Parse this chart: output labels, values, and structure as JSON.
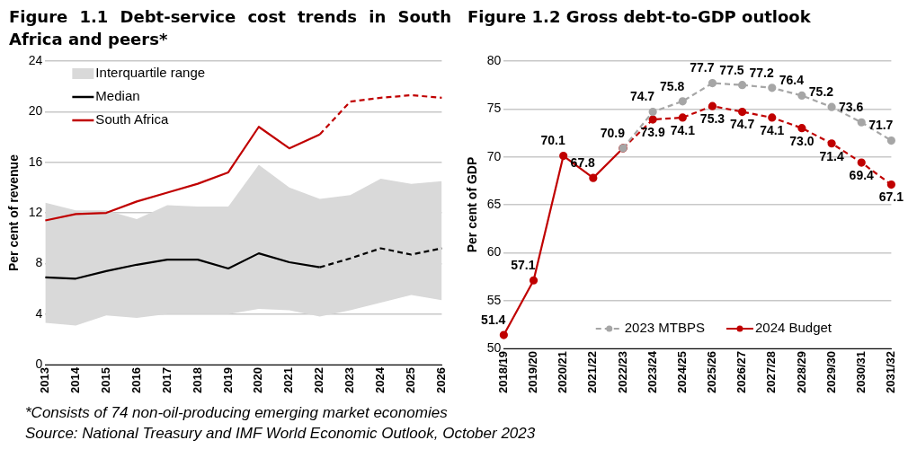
{
  "chart_data": [
    {
      "type": "line",
      "title": "Figure 1.1 Debt-service cost trends in South Africa and peers*",
      "ylabel": "Per cent of revenue",
      "categories": [
        "2013",
        "2014",
        "2015",
        "2016",
        "2017",
        "2018",
        "2019",
        "2020",
        "2021",
        "2022",
        "2023",
        "2024",
        "2025",
        "2026"
      ],
      "series": [
        {
          "name": "Interquartile range",
          "type": "area",
          "color": "#d9d9d9",
          "values": [
            null,
            null,
            null,
            null,
            null,
            null,
            null,
            null,
            null,
            null,
            null,
            null,
            null,
            null
          ],
          "upper": [
            12.8,
            12.2,
            12.2,
            11.5,
            12.6,
            12.5,
            12.5,
            15.8,
            14.0,
            13.1,
            13.4,
            14.7,
            14.3,
            14.5
          ],
          "lower": [
            3.3,
            3.1,
            3.9,
            3.7,
            4.0,
            4.0,
            4.0,
            4.4,
            4.3,
            3.8,
            4.3,
            4.9,
            5.5,
            5.1
          ]
        },
        {
          "name": "Median",
          "color": "#000000",
          "line_style": "solid",
          "values": [
            6.9,
            6.8,
            7.4,
            7.9,
            8.3,
            8.3,
            7.6,
            8.8,
            8.1,
            7.7,
            null,
            null,
            null,
            null
          ]
        },
        {
          "name": "South Africa",
          "color": "#c00000",
          "line_style": "solid",
          "values": [
            11.4,
            11.9,
            12.0,
            12.9,
            13.6,
            14.3,
            15.2,
            18.8,
            17.1,
            18.2,
            null,
            null,
            null,
            null
          ]
        },
        {
          "color": "#000000",
          "line_style": "dashed",
          "values": [
            null,
            null,
            null,
            null,
            null,
            null,
            null,
            null,
            null,
            7.7,
            8.4,
            9.2,
            8.7,
            9.2
          ]
        },
        {
          "color": "#c00000",
          "line_style": "dashed",
          "values": [
            null,
            null,
            null,
            null,
            null,
            null,
            null,
            null,
            null,
            18.2,
            20.8,
            21.1,
            21.3,
            21.1
          ]
        }
      ],
      "ylim": [
        0,
        24
      ],
      "yticks": [
        0,
        4,
        8,
        12,
        16,
        20,
        24
      ],
      "grid": "y",
      "legend": "top left",
      "marker": "none",
      "annotations": [
        "*Consists of 74 non-oil-producing emerging market economies",
        "Source: National Treasury and IMF World Economic Outlook, October 2023"
      ]
    },
    {
      "type": "line",
      "title": "Figure 1.2 Gross debt-to-GDP outlook",
      "ylabel": "Per cent of GDP",
      "categories": [
        "2018/19",
        "2019/20",
        "2020/21",
        "2021/22",
        "2022/23",
        "2023/24",
        "2024/25",
        "2025/26",
        "2026/27",
        "2027/28",
        "2028/29",
        "2029/30",
        "2030/31",
        "2031/32"
      ],
      "series": [
        {
          "name": "2023 MTBPS",
          "color": "#a6a6a6",
          "line_style": "dashed",
          "values": [
            null,
            null,
            null,
            null,
            70.9,
            74.7,
            75.8,
            77.7,
            77.5,
            77.2,
            76.4,
            75.2,
            73.6,
            71.7
          ],
          "value_labels": [
            null,
            null,
            null,
            null,
            null,
            "74.7",
            "75.8",
            "77.7",
            "77.5",
            "77.2",
            "76.4",
            "75.2",
            "73.6",
            "71.7"
          ]
        },
        {
          "name": "2024 Budget",
          "color": "#c00000",
          "line_style": "solid",
          "values": [
            51.4,
            57.1,
            70.1,
            67.8,
            70.9,
            null,
            null,
            null,
            null,
            null,
            null,
            null,
            null,
            null
          ],
          "value_labels": [
            "51.4",
            "57.1",
            "70.1",
            "67.8",
            "70.9",
            null,
            null,
            null,
            null,
            null,
            null,
            null,
            null,
            null
          ]
        },
        {
          "color": "#c00000",
          "line_style": "dashed",
          "values": [
            null,
            null,
            null,
            null,
            70.9,
            73.9,
            74.1,
            75.3,
            74.7,
            74.1,
            73.0,
            71.4,
            69.4,
            67.1
          ],
          "value_labels": [
            null,
            null,
            null,
            null,
            null,
            "73.9",
            "74.1",
            "75.3",
            "74.7",
            "74.1",
            "73.0",
            "71.4",
            "69.4",
            "67.1"
          ]
        }
      ],
      "ylim": [
        50,
        80
      ],
      "yticks": [
        50,
        55,
        60,
        65,
        70,
        75,
        80
      ],
      "grid": "y",
      "legend": "bottom",
      "marker": "circle"
    }
  ]
}
